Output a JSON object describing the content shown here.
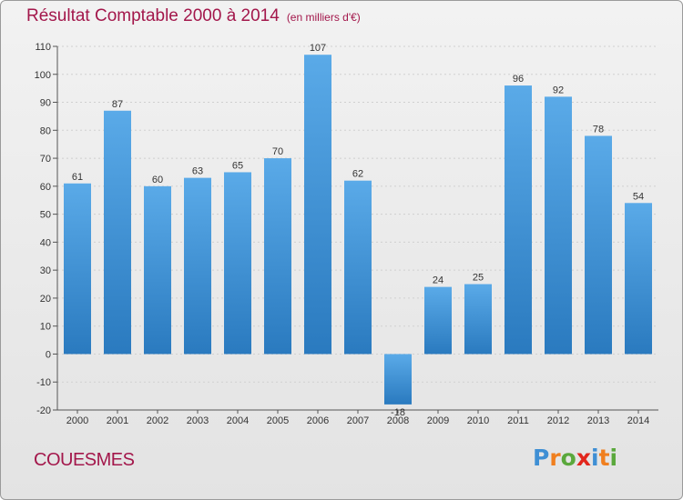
{
  "header": {
    "title": "Résultat Comptable 2000 à 2014",
    "subtitle": "(en milliers d'€)"
  },
  "footer": {
    "commune": "COUESMES",
    "logo_letters": [
      "P",
      "r",
      "o",
      "x",
      "i",
      "t",
      "i"
    ],
    "logo_colors": [
      "#3f8fd4",
      "#f07f1e",
      "#5aa83c",
      "#e2261c",
      "#3f8fd4",
      "#f07f1e",
      "#5aa83c"
    ]
  },
  "chart_data": {
    "type": "bar",
    "title": "Résultat Comptable 2000 à 2014",
    "subtitle": "(en milliers d'€)",
    "categories": [
      "2000",
      "2001",
      "2002",
      "2003",
      "2004",
      "2005",
      "2006",
      "2007",
      "2008",
      "2009",
      "2010",
      "2011",
      "2012",
      "2013",
      "2014"
    ],
    "values": [
      61,
      87,
      60,
      63,
      65,
      70,
      107,
      62,
      -18,
      24,
      25,
      96,
      92,
      78,
      54
    ],
    "ylim": [
      -20,
      110
    ],
    "yticks": [
      -20,
      -10,
      0,
      10,
      20,
      30,
      40,
      50,
      60,
      70,
      80,
      90,
      100,
      110
    ],
    "xlabel": "",
    "ylabel": "",
    "grid": true,
    "bar_color_light": "#5aaae8",
    "bar_color_dark": "#2a7abf"
  }
}
